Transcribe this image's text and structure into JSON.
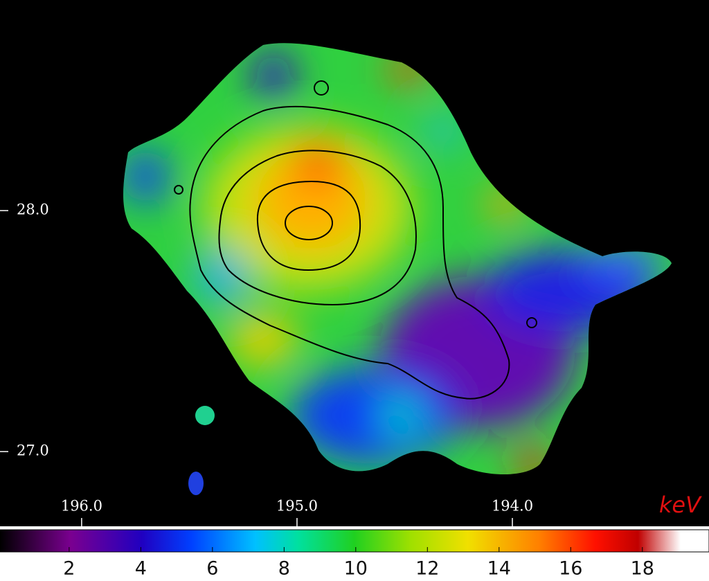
{
  "chart_data": {
    "type": "heatmap",
    "xlim": [
      196.379,
      193.087
    ],
    "ylim": [
      26.69,
      28.874
    ],
    "xticks": [
      {
        "value": 196,
        "label": "196.0"
      },
      {
        "value": 195,
        "label": "195.0"
      },
      {
        "value": 194,
        "label": "194.0"
      }
    ],
    "yticks": [
      {
        "value": 27,
        "label": "27.0"
      },
      {
        "value": 28,
        "label": "28.0"
      }
    ],
    "colorbar": {
      "label": "keV",
      "lim": [
        0.07,
        19.86
      ],
      "ticks": [
        2,
        4,
        6,
        8,
        10,
        12,
        14,
        16,
        18
      ]
    }
  }
}
